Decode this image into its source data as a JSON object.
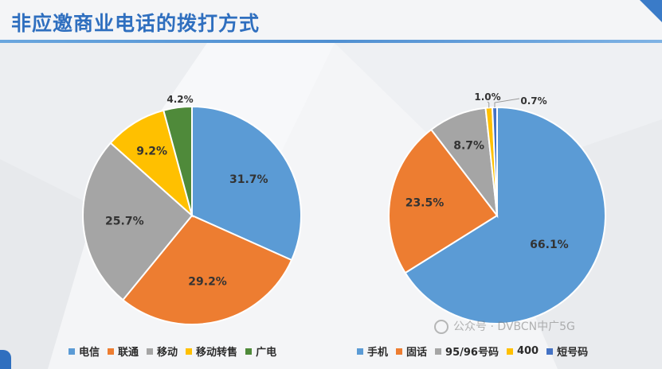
{
  "slide": {
    "title": "非应邀商业电话的拨打方式",
    "watermark": "公众号 · DVBCN中广5G"
  },
  "chart_data": [
    {
      "type": "pie",
      "title": "",
      "categories": [
        "电信",
        "联通",
        "移动",
        "移动转售",
        "广电"
      ],
      "values": [
        31.7,
        29.2,
        25.7,
        9.2,
        4.2
      ],
      "labels": [
        "31.7%",
        "29.2%",
        "25.7%",
        "9.2%",
        "4.2%"
      ],
      "colors": [
        "#5b9bd5",
        "#ed7d31",
        "#a5a5a5",
        "#ffc000",
        "#4f8a3a"
      ],
      "start": "12 o'clock",
      "direction": "clockwise",
      "legend": "bottom"
    },
    {
      "type": "pie",
      "title": "",
      "categories": [
        "手机",
        "固话",
        "95/96号码",
        "400",
        "短号码"
      ],
      "values": [
        66.1,
        23.5,
        8.7,
        1.0,
        0.7
      ],
      "labels": [
        "66.1%",
        "23.5%",
        "8.7%",
        "1.0%",
        "0.7%"
      ],
      "colors": [
        "#5b9bd5",
        "#ed7d31",
        "#a5a5a5",
        "#ffc000",
        "#4472c4"
      ],
      "start": "12 o'clock",
      "direction": "clockwise",
      "legend": "bottom"
    }
  ]
}
